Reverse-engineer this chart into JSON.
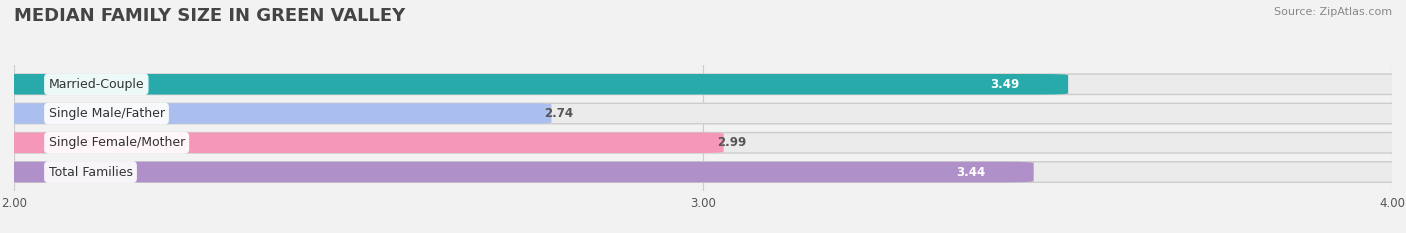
{
  "title": "MEDIAN FAMILY SIZE IN GREEN VALLEY",
  "source": "Source: ZipAtlas.com",
  "categories": [
    "Married-Couple",
    "Single Male/Father",
    "Single Female/Mother",
    "Total Families"
  ],
  "values": [
    3.49,
    2.74,
    2.99,
    3.44
  ],
  "bar_colors": [
    "#29AAAA",
    "#AABFEE",
    "#F497B8",
    "#B090C8"
  ],
  "xlim_data": [
    2.0,
    4.0
  ],
  "x_min": 2.0,
  "x_max": 4.0,
  "xticks": [
    2.0,
    3.0,
    4.0
  ],
  "xtick_labels": [
    "2.00",
    "3.00",
    "4.00"
  ],
  "bar_height": 0.62,
  "value_label_color": [
    "#ffffff",
    "#555555",
    "#555555",
    "#ffffff"
  ],
  "bg_color": "#f2f2f2",
  "bar_bg_color": "#e2e2e2"
}
